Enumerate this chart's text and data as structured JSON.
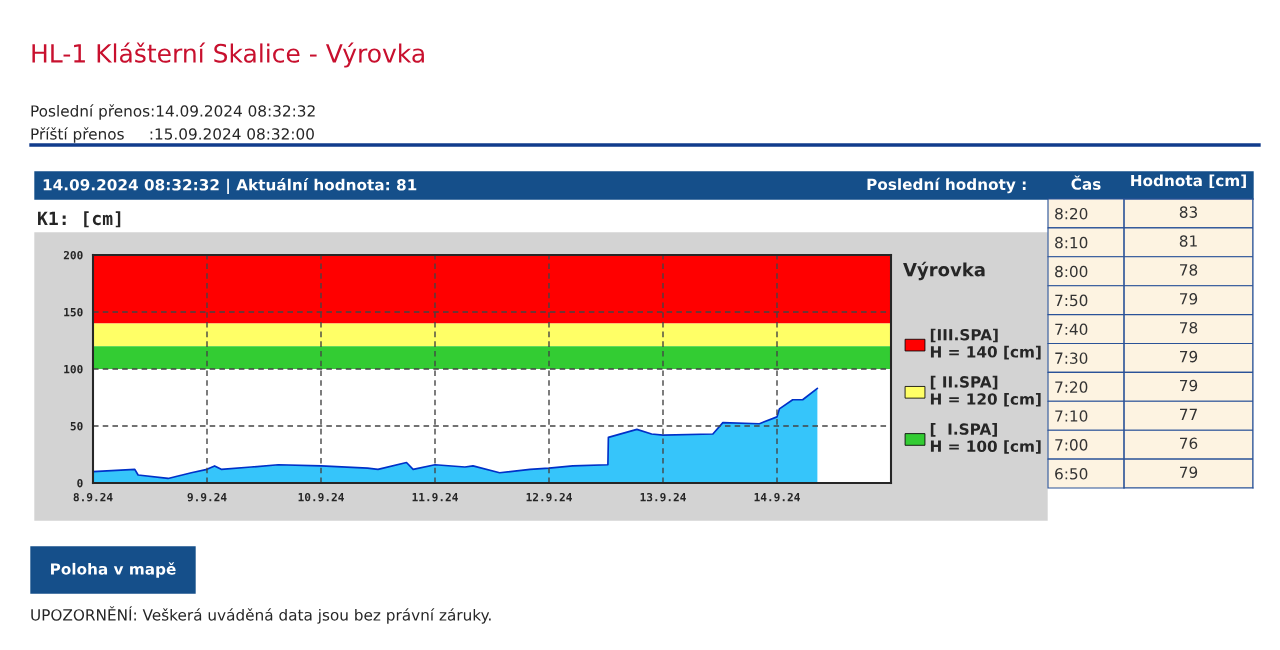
{
  "chart_data": [
    {
      "type": "area",
      "title": "HL-1 Klášterní Skalice - Výrovka",
      "annotations": [
        "Poslední přenos:14.09.2024 08:32:32",
        "Příští přenos     :15.09.2024 08:32:00",
        "14.09.2024 08:32:32 | Aktuální hodnota: 81",
        "K1: [cm]",
        "Poloha v mapě",
        "UPOZORNĚNÍ: Veškerá uváděná data jsou bez právní záruky."
      ],
      "series": [
        {
          "color": "#36c5fa",
          "x": [
            "2024-09-08T00:00",
            "2024-09-08T08:48",
            "2024-09-08T09:30",
            "2024-09-08T15:48",
            "2024-09-08T20:42",
            "2024-09-09T00:00",
            "2024-09-09T01:36",
            "2024-09-09T03:00",
            "2024-09-09T09:18",
            "2024-09-09T15:00",
            "2024-09-10T00:00",
            "2024-09-10T09:48",
            "2024-09-10T12:00",
            "2024-09-10T18:00",
            "2024-09-10T19:24",
            "2024-09-11T00:00",
            "2024-09-11T06:18",
            "2024-09-11T08:00",
            "2024-09-11T13:36",
            "2024-09-11T20:00",
            "2024-09-12T00:00",
            "2024-09-12T05:00",
            "2024-09-12T12:24",
            "2024-09-12T12:30",
            "2024-09-12T18:30",
            "2024-09-12T21:36",
            "2024-09-13T00:00",
            "2024-09-13T10:30",
            "2024-09-13T12:36",
            "2024-09-13T20:18",
            "2024-09-14T00:00",
            "2024-09-14T00:30",
            "2024-09-14T03:18",
            "2024-09-14T05:24",
            "2024-09-14T08:30"
          ],
          "values": [
            10,
            12,
            7,
            4,
            9,
            12,
            15,
            12,
            14,
            16,
            15,
            13,
            12,
            18,
            12,
            16,
            14,
            15,
            9,
            12,
            13,
            15,
            16,
            40,
            47,
            43,
            42,
            43,
            53,
            52,
            58,
            65,
            73,
            73,
            83
          ]
        }
      ],
      "xlim": [
        "2024-09-08",
        "2024-09-15"
      ],
      "xticks": [
        {
          "value": "2024-09-08",
          "label": "8.9.24"
        },
        {
          "value": "2024-09-09",
          "label": "9.9.24"
        },
        {
          "value": "2024-09-10",
          "label": "10.9.24"
        },
        {
          "value": "2024-09-11",
          "label": "11.9.24"
        },
        {
          "value": "2024-09-12",
          "label": "12.9.24"
        },
        {
          "value": "2024-09-13",
          "label": "13.9.24"
        },
        {
          "value": "2024-09-14",
          "label": "14.9.24"
        }
      ],
      "ylim": [
        0,
        200
      ],
      "yticks": [
        0,
        50,
        100,
        150,
        200
      ],
      "grid": true,
      "bands": [
        {
          "axis": "y",
          "from": 140,
          "to": 200,
          "color": "#ff0000",
          "label": "[III.SPA]\nH = 140 [cm]"
        },
        {
          "axis": "y",
          "from": 120,
          "to": 140,
          "color": "#ffff66",
          "label": "[ II.SPA]\nH = 120 [cm]"
        },
        {
          "axis": "y",
          "from": 100,
          "to": 120,
          "color": "#33cc33",
          "label": "[  I.SPA]\nH = 100 [cm]"
        }
      ],
      "legend": "right",
      "legend_title": "Výrovka"
    },
    {
      "type": "heatmap",
      "title": "Poslední hodnoty :",
      "ylabel": "Čas",
      "categories": [
        "Hodnota [cm]"
      ],
      "y_categories": [
        "8:20",
        "8:10",
        "8:00",
        "7:50",
        "7:40",
        "7:30",
        "7:20",
        "7:10",
        "7:00",
        "6:50"
      ],
      "cells": [
        [
          83
        ],
        [
          81
        ],
        [
          78
        ],
        [
          79
        ],
        [
          78
        ],
        [
          79
        ],
        [
          79
        ],
        [
          77
        ],
        [
          76
        ],
        [
          79
        ]
      ],
      "data_labels": true
    }
  ]
}
